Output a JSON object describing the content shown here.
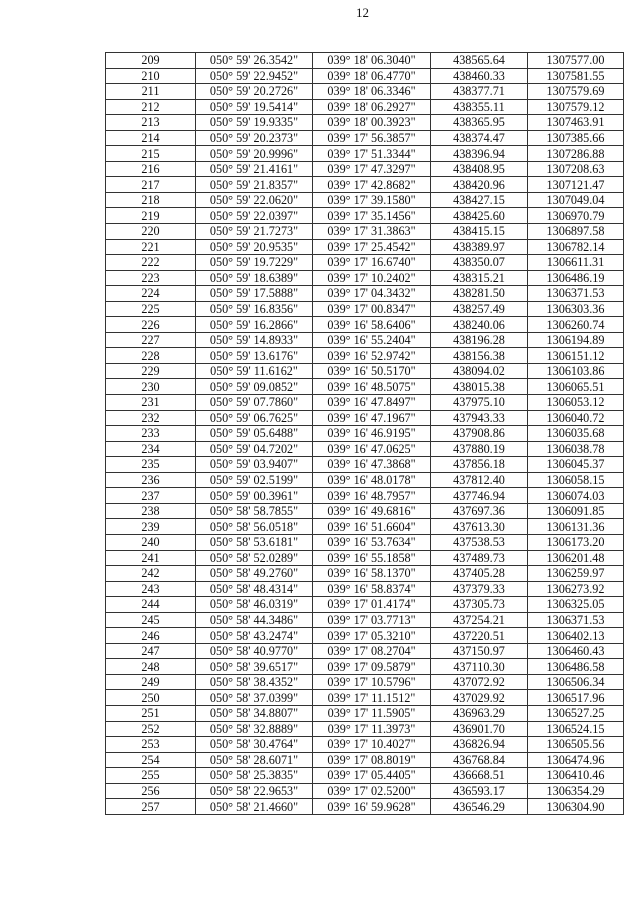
{
  "page_number": "12",
  "table": {
    "rows": [
      [
        "209",
        "050° 59' 26.3542\"",
        "039° 18' 06.3040\"",
        "438565.64",
        "1307577.00"
      ],
      [
        "210",
        "050° 59' 22.9452\"",
        "039° 18' 06.4770\"",
        "438460.33",
        "1307581.55"
      ],
      [
        "211",
        "050° 59' 20.2726\"",
        "039° 18' 06.3346\"",
        "438377.71",
        "1307579.69"
      ],
      [
        "212",
        "050° 59' 19.5414\"",
        "039° 18' 06.2927\"",
        "438355.11",
        "1307579.12"
      ],
      [
        "213",
        "050° 59' 19.9335\"",
        "039° 18' 00.3923\"",
        "438365.95",
        "1307463.91"
      ],
      [
        "214",
        "050° 59' 20.2373\"",
        "039° 17' 56.3857\"",
        "438374.47",
        "1307385.66"
      ],
      [
        "215",
        "050° 59' 20.9996\"",
        "039° 17' 51.3344\"",
        "438396.94",
        "1307286.88"
      ],
      [
        "216",
        "050° 59' 21.4161\"",
        "039° 17' 47.3297\"",
        "438408.95",
        "1307208.63"
      ],
      [
        "217",
        "050° 59' 21.8357\"",
        "039° 17' 42.8682\"",
        "438420.96",
        "1307121.47"
      ],
      [
        "218",
        "050° 59' 22.0620\"",
        "039° 17' 39.1580\"",
        "438427.15",
        "1307049.04"
      ],
      [
        "219",
        "050° 59' 22.0397\"",
        "039° 17' 35.1456\"",
        "438425.60",
        "1306970.79"
      ],
      [
        "220",
        "050° 59' 21.7273\"",
        "039° 17' 31.3863\"",
        "438415.15",
        "1306897.58"
      ],
      [
        "221",
        "050° 59' 20.9535\"",
        "039° 17' 25.4542\"",
        "438389.97",
        "1306782.14"
      ],
      [
        "222",
        "050° 59' 19.7229\"",
        "039° 17' 16.6740\"",
        "438350.07",
        "1306611.31"
      ],
      [
        "223",
        "050° 59' 18.6389\"",
        "039° 17' 10.2402\"",
        "438315.21",
        "1306486.19"
      ],
      [
        "224",
        "050° 59' 17.5888\"",
        "039° 17' 04.3432\"",
        "438281.50",
        "1306371.53"
      ],
      [
        "225",
        "050° 59' 16.8356\"",
        "039° 17' 00.8347\"",
        "438257.49",
        "1306303.36"
      ],
      [
        "226",
        "050° 59' 16.2866\"",
        "039° 16' 58.6406\"",
        "438240.06",
        "1306260.74"
      ],
      [
        "227",
        "050° 59' 14.8933\"",
        "039° 16' 55.2404\"",
        "438196.28",
        "1306194.89"
      ],
      [
        "228",
        "050° 59' 13.6176\"",
        "039° 16' 52.9742\"",
        "438156.38",
        "1306151.12"
      ],
      [
        "229",
        "050° 59' 11.6162\"",
        "039° 16' 50.5170\"",
        "438094.02",
        "1306103.86"
      ],
      [
        "230",
        "050° 59' 09.0852\"",
        "039° 16' 48.5075\"",
        "438015.38",
        "1306065.51"
      ],
      [
        "231",
        "050° 59' 07.7860\"",
        "039° 16' 47.8497\"",
        "437975.10",
        "1306053.12"
      ],
      [
        "232",
        "050° 59' 06.7625\"",
        "039° 16' 47.1967\"",
        "437943.33",
        "1306040.72"
      ],
      [
        "233",
        "050° 59' 05.6488\"",
        "039° 16' 46.9195\"",
        "437908.86",
        "1306035.68"
      ],
      [
        "234",
        "050° 59' 04.7202\"",
        "039° 16' 47.0625\"",
        "437880.19",
        "1306038.78"
      ],
      [
        "235",
        "050° 59' 03.9407\"",
        "039° 16' 47.3868\"",
        "437856.18",
        "1306045.37"
      ],
      [
        "236",
        "050° 59' 02.5199\"",
        "039° 16' 48.0178\"",
        "437812.40",
        "1306058.15"
      ],
      [
        "237",
        "050° 59' 00.3961\"",
        "039° 16' 48.7957\"",
        "437746.94",
        "1306074.03"
      ],
      [
        "238",
        "050° 58' 58.7855\"",
        "039° 16' 49.6816\"",
        "437697.36",
        "1306091.85"
      ],
      [
        "239",
        "050° 58' 56.0518\"",
        "039° 16' 51.6604\"",
        "437613.30",
        "1306131.36"
      ],
      [
        "240",
        "050° 58' 53.6181\"",
        "039° 16' 53.7634\"",
        "437538.53",
        "1306173.20"
      ],
      [
        "241",
        "050° 58' 52.0289\"",
        "039° 16' 55.1858\"",
        "437489.73",
        "1306201.48"
      ],
      [
        "242",
        "050° 58' 49.2760\"",
        "039° 16' 58.1370\"",
        "437405.28",
        "1306259.97"
      ],
      [
        "243",
        "050° 58' 48.4314\"",
        "039° 16' 58.8374\"",
        "437379.33",
        "1306273.92"
      ],
      [
        "244",
        "050° 58' 46.0319\"",
        "039° 17' 01.4174\"",
        "437305.73",
        "1306325.05"
      ],
      [
        "245",
        "050° 58' 44.3486\"",
        "039° 17' 03.7713\"",
        "437254.21",
        "1306371.53"
      ],
      [
        "246",
        "050° 58' 43.2474\"",
        "039° 17' 05.3210\"",
        "437220.51",
        "1306402.13"
      ],
      [
        "247",
        "050° 58' 40.9770\"",
        "039° 17' 08.2704\"",
        "437150.97",
        "1306460.43"
      ],
      [
        "248",
        "050° 58' 39.6517\"",
        "039° 17' 09.5879\"",
        "437110.30",
        "1306486.58"
      ],
      [
        "249",
        "050° 58' 38.4352\"",
        "039° 17' 10.5796\"",
        "437072.92",
        "1306506.34"
      ],
      [
        "250",
        "050° 58' 37.0399\"",
        "039° 17' 11.1512\"",
        "437029.92",
        "1306517.96"
      ],
      [
        "251",
        "050° 58' 34.8807\"",
        "039° 17' 11.5905\"",
        "436963.29",
        "1306527.25"
      ],
      [
        "252",
        "050° 58' 32.8889\"",
        "039° 17' 11.3973\"",
        "436901.70",
        "1306524.15"
      ],
      [
        "253",
        "050° 58' 30.4764\"",
        "039° 17' 10.4027\"",
        "436826.94",
        "1306505.56"
      ],
      [
        "254",
        "050° 58' 28.6071\"",
        "039° 17' 08.8019\"",
        "436768.84",
        "1306474.96"
      ],
      [
        "255",
        "050° 58' 25.3835\"",
        "039° 17' 05.4405\"",
        "436668.51",
        "1306410.46"
      ],
      [
        "256",
        "050° 58' 22.9653\"",
        "039° 17' 02.5200\"",
        "436593.17",
        "1306354.29"
      ],
      [
        "257",
        "050° 58' 21.4660\"",
        "039° 16' 59.9628\"",
        "436546.29",
        "1306304.90"
      ]
    ]
  }
}
